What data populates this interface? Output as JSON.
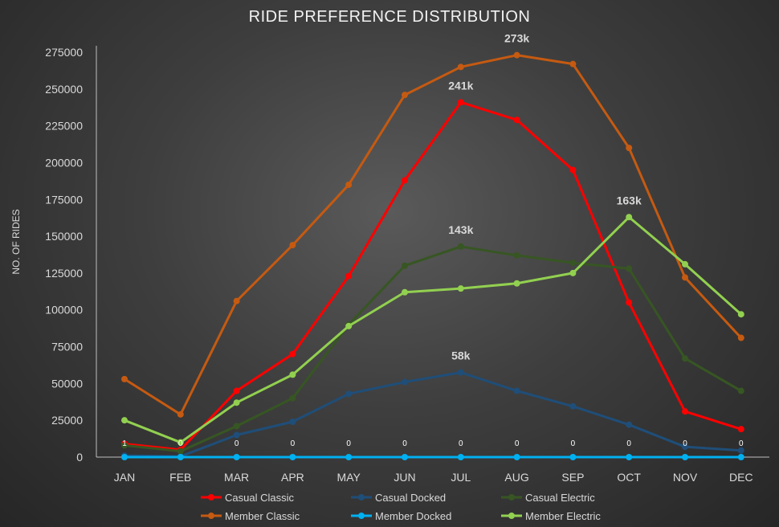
{
  "chart_data": {
    "type": "line",
    "title": "RIDE PREFERENCE DISTRIBUTION",
    "xlabel": "",
    "ylabel": "NO. OF RIDES",
    "categories": [
      "JAN",
      "FEB",
      "MAR",
      "APR",
      "MAY",
      "JUN",
      "JUL",
      "AUG",
      "SEP",
      "OCT",
      "NOV",
      "DEC"
    ],
    "ylim": [
      0,
      275000
    ],
    "yticks": [
      0,
      25000,
      50000,
      75000,
      100000,
      125000,
      150000,
      175000,
      200000,
      225000,
      250000,
      275000
    ],
    "grid": false,
    "legend_position": "bottom",
    "series": [
      {
        "name": "Casual Classic",
        "color": "#ff0000",
        "values": [
          9000,
          5000,
          45000,
          70000,
          123000,
          188000,
          241000,
          229000,
          195000,
          105000,
          31000,
          19000
        ]
      },
      {
        "name": "Casual Docked",
        "color": "#1f4e79",
        "values": [
          1000,
          500,
          15000,
          24000,
          43000,
          51000,
          57500,
          45000,
          34500,
          22000,
          7000,
          4500
        ]
      },
      {
        "name": "Casual Electric",
        "color": "#375623",
        "values": [
          8000,
          4000,
          21000,
          40000,
          90000,
          130000,
          143000,
          137000,
          132000,
          128000,
          67000,
          45000
        ]
      },
      {
        "name": "Member Classic",
        "color": "#c55a11",
        "values": [
          53000,
          29000,
          106000,
          144000,
          185000,
          246000,
          265000,
          273000,
          267000,
          210000,
          122000,
          81000
        ]
      },
      {
        "name": "Member Docked",
        "color": "#00b0f0",
        "values": [
          0,
          0,
          0,
          0,
          0,
          0,
          0,
          0,
          0,
          0,
          0,
          0
        ]
      },
      {
        "name": "Member Electric",
        "color": "#92d050",
        "values": [
          25000,
          10000,
          37000,
          56000,
          89000,
          112000,
          114500,
          118000,
          125000,
          163000,
          131000,
          97000
        ]
      }
    ],
    "data_labels": [
      {
        "series": "Member Classic",
        "category": "AUG",
        "text": "273k"
      },
      {
        "series": "Casual Classic",
        "category": "JUL",
        "text": "241k"
      },
      {
        "series": "Member Electric",
        "category": "OCT",
        "text": "163k"
      },
      {
        "series": "Casual Electric",
        "category": "JUL",
        "text": "143k"
      },
      {
        "series": "Casual Docked",
        "category": "JUL",
        "text": "58k"
      }
    ],
    "small_labels": [
      "1",
      "0",
      "0",
      "0",
      "0",
      "0",
      "0",
      "0",
      "0",
      "0",
      "0",
      "0"
    ]
  }
}
